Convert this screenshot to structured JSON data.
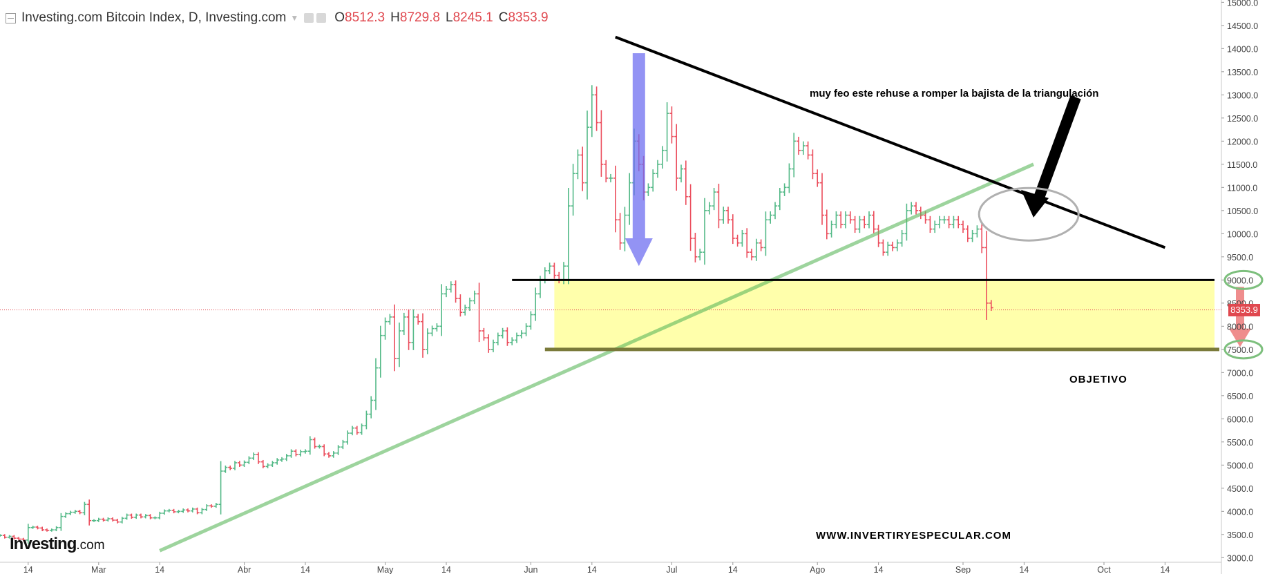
{
  "header": {
    "title": "Investing.com Bitcoin Index, D, Investing.com",
    "open_label": "O",
    "open": "8512.3",
    "high_label": "H",
    "high": "8729.8",
    "low_label": "L",
    "low": "8245.1",
    "close_label": "C",
    "close": "8353.9"
  },
  "branding": {
    "logo": "Investing",
    "logo_suffix": ".com"
  },
  "annotations": {
    "comment": "muy feo este rehuse a romper la bajista de la triangulación",
    "target": "OBJETIVO",
    "website": "WWW.INVERTIRYESPECULAR.COM"
  },
  "last_price_tag": "8353.9",
  "chart_data": {
    "type": "candlestick",
    "y_axis": {
      "range": [
        2900,
        15050
      ],
      "ticks": [
        3000,
        3500,
        4000,
        4500,
        5000,
        5500,
        6000,
        6500,
        7000,
        7500,
        8000,
        8500,
        9000,
        9500,
        10000,
        10500,
        11000,
        11500,
        12000,
        12500,
        13000,
        13500,
        14000,
        14500,
        15000
      ],
      "tick_labels": [
        "3000.0",
        "3500.0",
        "4000.0",
        "4500.0",
        "5000.0",
        "5500.0",
        "6000.0",
        "6500.0",
        "7000.0",
        "7500.0",
        "8000.0",
        "8500.0",
        "9000.0",
        "9500.0",
        "10000.0",
        "10500.0",
        "11000.0",
        "11500.0",
        "12000.0",
        "12500.0",
        "13000.0",
        "13500.0",
        "14000.0",
        "14500.0",
        "15000.0"
      ]
    },
    "x_axis": {
      "range": [
        "2019-02-08",
        "2019-10-26"
      ],
      "ticks": [
        {
          "date": "2019-02-14",
          "label": "14"
        },
        {
          "date": "2019-03-01",
          "label": "Mar"
        },
        {
          "date": "2019-03-14",
          "label": "14"
        },
        {
          "date": "2019-04-01",
          "label": "Abr"
        },
        {
          "date": "2019-04-14",
          "label": "14"
        },
        {
          "date": "2019-05-01",
          "label": "May"
        },
        {
          "date": "2019-05-14",
          "label": "14"
        },
        {
          "date": "2019-06-01",
          "label": "Jun"
        },
        {
          "date": "2019-06-14",
          "label": "14"
        },
        {
          "date": "2019-07-01",
          "label": "Jul"
        },
        {
          "date": "2019-07-14",
          "label": "14"
        },
        {
          "date": "2019-08-01",
          "label": "Ago"
        },
        {
          "date": "2019-08-14",
          "label": "14"
        },
        {
          "date": "2019-09-01",
          "label": "Sep"
        },
        {
          "date": "2019-09-14",
          "label": "14"
        },
        {
          "date": "2019-10-01",
          "label": "Oct"
        },
        {
          "date": "2019-10-14",
          "label": "14"
        }
      ]
    },
    "start_date": "2019-02-08",
    "closes": [
      3480,
      3440,
      3460,
      3420,
      3400,
      3380,
      3650,
      3660,
      3640,
      3600,
      3590,
      3600,
      3650,
      3890,
      3950,
      3980,
      4000,
      3970,
      4150,
      3800,
      3800,
      3830,
      3810,
      3840,
      3810,
      3770,
      3850,
      3920,
      3870,
      3920,
      3880,
      3910,
      3860,
      3860,
      3960,
      4010,
      4020,
      3990,
      4000,
      4030,
      4010,
      4050,
      3970,
      4040,
      4120,
      4110,
      4150,
      4870,
      4950,
      4930,
      5050,
      5000,
      5060,
      5150,
      5230,
      5070,
      4970,
      5000,
      5050,
      5110,
      5130,
      5200,
      5300,
      5230,
      5290,
      5300,
      5550,
      5400,
      5400,
      5240,
      5200,
      5260,
      5390,
      5500,
      5690,
      5800,
      5700,
      5850,
      6100,
      6400,
      7100,
      7800,
      8100,
      8200,
      7300,
      7900,
      8200,
      7650,
      8200,
      8100,
      7500,
      7850,
      7950,
      8000,
      8700,
      8800,
      8900,
      8600,
      8300,
      8400,
      8550,
      8700,
      7900,
      7750,
      7500,
      7650,
      7800,
      7900,
      7650,
      7700,
      7800,
      7850,
      8000,
      8250,
      8700,
      9000,
      9200,
      9300,
      9100,
      9000,
      9300,
      10600,
      11300,
      11700,
      11100,
      12300,
      13000,
      12400,
      11500,
      11200,
      11200,
      10300,
      9800,
      10400,
      11100,
      12000,
      11500,
      10900,
      11000,
      11300,
      11500,
      11800,
      12600,
      12100,
      11200,
      11400,
      10800,
      9900,
      9500,
      9600,
      10500,
      10600,
      10900,
      10300,
      10500,
      10300,
      9900,
      9800,
      10000,
      9600,
      9500,
      9800,
      9700,
      10300,
      10400,
      10600,
      10900,
      11000,
      11400,
      12000,
      11800,
      11900,
      11700,
      11300,
      11100,
      10400,
      10000,
      10200,
      10400,
      10200,
      10400,
      10300,
      10100,
      10300,
      10200,
      10400,
      10100,
      9800,
      9600,
      9750,
      9700,
      9800,
      10000,
      10500,
      10600,
      10500,
      10400,
      10300,
      10100,
      10200,
      10300,
      10300,
      10200,
      10300,
      10200,
      10100,
      9900,
      10000,
      10100,
      9700,
      8500,
      8400
    ],
    "ohlc_last": {
      "open": 8512.3,
      "high": 8729.8,
      "low": 8245.1,
      "close": 8353.9
    },
    "drawn_levels": [
      9000,
      7500
    ],
    "highlighted_labels": [
      "9000.0",
      "7500.0"
    ]
  }
}
